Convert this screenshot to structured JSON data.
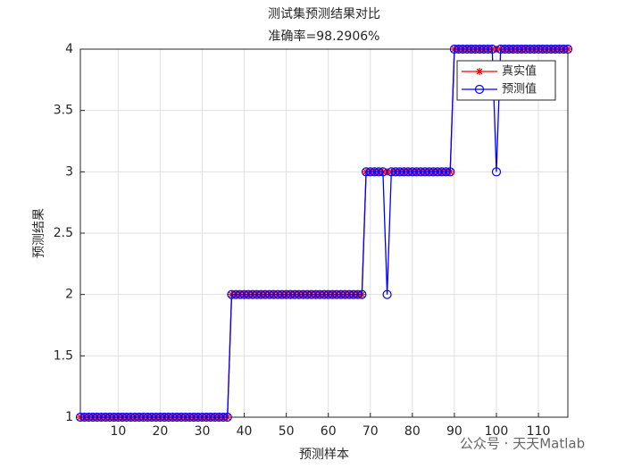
{
  "chart_data": {
    "type": "line",
    "title": "测试集预测结果对比",
    "subtitle": "准确率=98.2906%",
    "x_label": "预测样本",
    "y_label": "预测结果",
    "watermark": "公众号 · 天天Matlab",
    "x": [
      1,
      2,
      3,
      4,
      5,
      6,
      7,
      8,
      9,
      10,
      11,
      12,
      13,
      14,
      15,
      16,
      17,
      18,
      19,
      20,
      21,
      22,
      23,
      24,
      25,
      26,
      27,
      28,
      29,
      30,
      31,
      32,
      33,
      34,
      35,
      36,
      37,
      38,
      39,
      40,
      41,
      42,
      43,
      44,
      45,
      46,
      47,
      48,
      49,
      50,
      51,
      52,
      53,
      54,
      55,
      56,
      57,
      58,
      59,
      60,
      61,
      62,
      63,
      64,
      65,
      66,
      67,
      68,
      69,
      70,
      71,
      72,
      73,
      74,
      75,
      76,
      77,
      78,
      79,
      80,
      81,
      82,
      83,
      84,
      85,
      86,
      87,
      88,
      89,
      90,
      91,
      92,
      93,
      94,
      95,
      96,
      97,
      98,
      99,
      100,
      101,
      102,
      103,
      104,
      105,
      106,
      107,
      108,
      109,
      110,
      111,
      112,
      113,
      114,
      115,
      116,
      117
    ],
    "series": [
      {
        "name": "真实值",
        "color": "#ff0000",
        "marker": "asterisk",
        "values": [
          1,
          1,
          1,
          1,
          1,
          1,
          1,
          1,
          1,
          1,
          1,
          1,
          1,
          1,
          1,
          1,
          1,
          1,
          1,
          1,
          1,
          1,
          1,
          1,
          1,
          1,
          1,
          1,
          1,
          1,
          1,
          1,
          1,
          1,
          1,
          1,
          2,
          2,
          2,
          2,
          2,
          2,
          2,
          2,
          2,
          2,
          2,
          2,
          2,
          2,
          2,
          2,
          2,
          2,
          2,
          2,
          2,
          2,
          2,
          2,
          2,
          2,
          2,
          2,
          2,
          2,
          2,
          2,
          3,
          3,
          3,
          3,
          3,
          3,
          3,
          3,
          3,
          3,
          3,
          3,
          3,
          3,
          3,
          3,
          3,
          3,
          3,
          3,
          3,
          4,
          4,
          4,
          4,
          4,
          4,
          4,
          4,
          4,
          4,
          4,
          4,
          4,
          4,
          4,
          4,
          4,
          4,
          4,
          4,
          4,
          4,
          4,
          4,
          4,
          4,
          4,
          4
        ]
      },
      {
        "name": "预测值",
        "color": "#0000ff",
        "marker": "circle",
        "values": [
          1,
          1,
          1,
          1,
          1,
          1,
          1,
          1,
          1,
          1,
          1,
          1,
          1,
          1,
          1,
          1,
          1,
          1,
          1,
          1,
          1,
          1,
          1,
          1,
          1,
          1,
          1,
          1,
          1,
          1,
          1,
          1,
          1,
          1,
          1,
          1,
          2,
          2,
          2,
          2,
          2,
          2,
          2,
          2,
          2,
          2,
          2,
          2,
          2,
          2,
          2,
          2,
          2,
          2,
          2,
          2,
          2,
          2,
          2,
          2,
          2,
          2,
          2,
          2,
          2,
          2,
          2,
          2,
          3,
          3,
          3,
          3,
          3,
          2,
          3,
          3,
          3,
          3,
          3,
          3,
          3,
          3,
          3,
          3,
          3,
          3,
          3,
          3,
          3,
          4,
          4,
          4,
          4,
          4,
          4,
          4,
          4,
          4,
          4,
          3,
          4,
          4,
          4,
          4,
          4,
          4,
          4,
          4,
          4,
          4,
          4,
          4,
          4,
          4,
          4,
          4,
          4
        ]
      }
    ],
    "xlim": [
      1,
      117
    ],
    "xticks": [
      10,
      20,
      30,
      40,
      50,
      60,
      70,
      80,
      90,
      100,
      110
    ],
    "ylim": [
      1,
      4
    ],
    "yticks": [
      1,
      1.5,
      2,
      2.5,
      3,
      3.5,
      4
    ],
    "grid": true,
    "legend": "northeast"
  }
}
